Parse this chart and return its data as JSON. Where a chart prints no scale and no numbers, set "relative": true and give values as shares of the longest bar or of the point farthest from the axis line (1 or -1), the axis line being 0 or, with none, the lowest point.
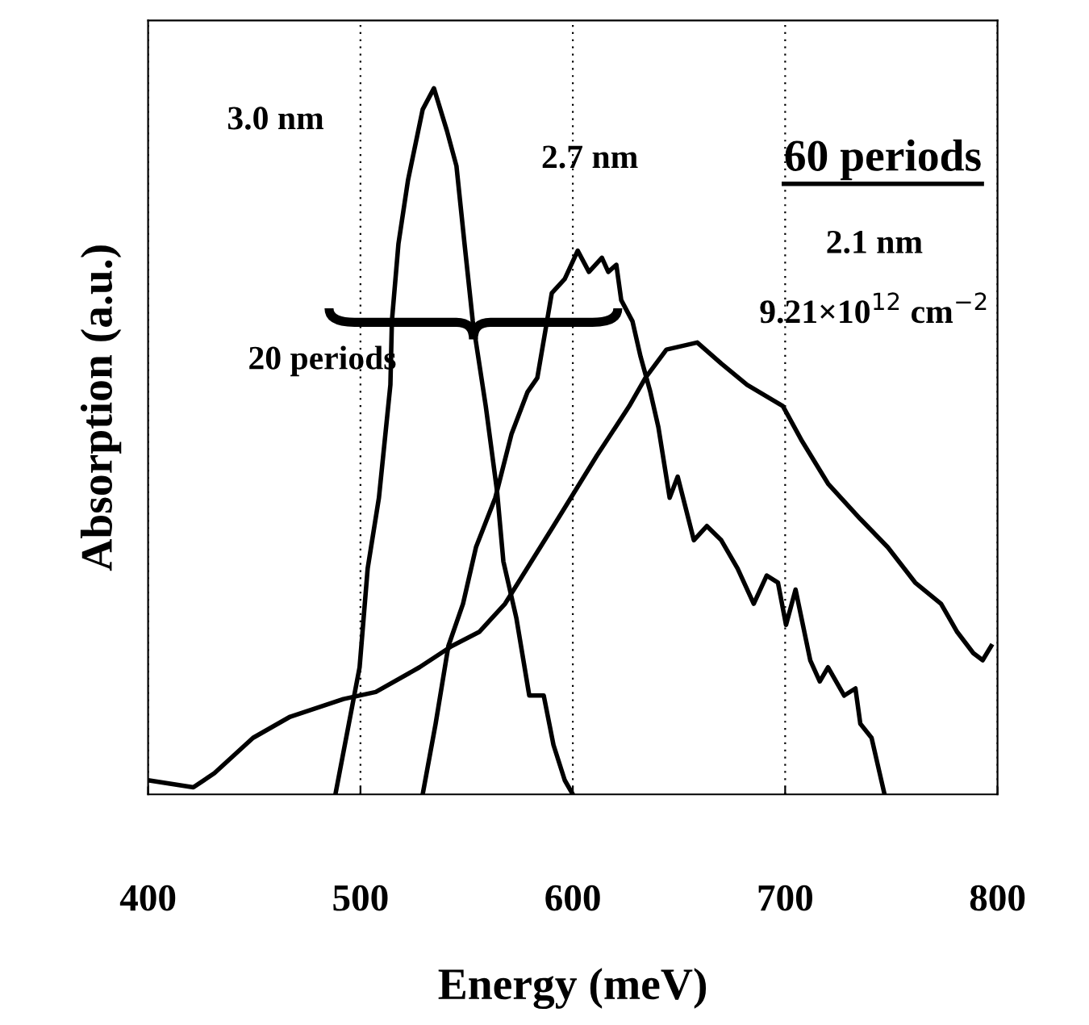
{
  "chart_data": {
    "type": "line",
    "relative": true,
    "xlabel": "Energy (meV)",
    "ylabel": "Absorption (a.u.)",
    "xlim": [
      400,
      800
    ],
    "xticks": [
      400,
      500,
      600,
      700,
      800
    ],
    "grid": "x",
    "marker": "none",
    "line_style": "solid",
    "series": [
      {
        "color": "#000000",
        "x": [
          488.2,
          499.6,
          503.4,
          508.7,
          514.1,
          514.8,
          517.9,
          522.4,
          529.3,
          534.6,
          540.7,
          545.2,
          549.0,
          552.9,
          559.0,
          564.3,
          567.3,
          573.4,
          579.5,
          586.3,
          590.9,
          596.2,
          600.0
        ],
        "values": [
          0,
          0.18,
          0.32,
          0.42,
          0.58,
          0.67,
          0.78,
          0.87,
          0.97,
          1.0,
          0.94,
          0.89,
          0.78,
          0.67,
          0.55,
          0.43,
          0.33,
          0.25,
          0.14,
          0.14,
          0.07,
          0.02,
          0
        ]
      },
      {
        "color": "#000000",
        "x": [
          529.3,
          535.4,
          541.4,
          548.3,
          554.4,
          563.5,
          571.1,
          578.7,
          583.3,
          590.1,
          596.2,
          602.3,
          607.6,
          613.7,
          616.7,
          620.5,
          622.8,
          628.1,
          631.9,
          636.5,
          640.3,
          645.6,
          649.4,
          657.0,
          663.1,
          669.9,
          677.6,
          685.2,
          691.3,
          696.6,
          700.4,
          704.9,
          711.8,
          716.3,
          720.2,
          727.8,
          733.1,
          735.4,
          740.7,
          744.5,
          746.8
        ],
        "values": [
          0,
          0.1,
          0.21,
          0.27,
          0.35,
          0.42,
          0.51,
          0.57,
          0.59,
          0.71,
          0.73,
          0.77,
          0.74,
          0.76,
          0.74,
          0.75,
          0.7,
          0.67,
          0.62,
          0.57,
          0.52,
          0.42,
          0.45,
          0.36,
          0.38,
          0.36,
          0.32,
          0.27,
          0.31,
          0.3,
          0.24,
          0.29,
          0.19,
          0.16,
          0.18,
          0.14,
          0.15,
          0.1,
          0.08,
          0.03,
          0
        ]
      },
      {
        "color": "#000000",
        "x": [
          400,
          421.3,
          431.2,
          449.4,
          466.9,
          492.0,
          507.2,
          527.8,
          543.0,
          555.9,
          568.1,
          590.9,
          611.4,
          626.6,
          634.2,
          644.1,
          658.6,
          670.0,
          682.1,
          698.9,
          708.0,
          720.2,
          735.4,
          748.3,
          761.2,
          773.4,
          781.0,
          788.6,
          793.0,
          797.0
        ],
        "values": [
          0.02,
          0.01,
          0.03,
          0.08,
          0.11,
          0.135,
          0.145,
          0.18,
          0.21,
          0.23,
          0.27,
          0.38,
          0.48,
          0.55,
          0.59,
          0.63,
          0.64,
          0.61,
          0.58,
          0.55,
          0.5,
          0.44,
          0.39,
          0.35,
          0.3,
          0.27,
          0.23,
          0.2,
          0.19,
          0.21
        ]
      }
    ],
    "annotations": [
      "3.0 nm",
      "2.7 nm",
      "60 periods",
      "2.1 nm",
      "9.21×10$^{12}$ cm$^{−2}$",
      "20 periods"
    ]
  }
}
